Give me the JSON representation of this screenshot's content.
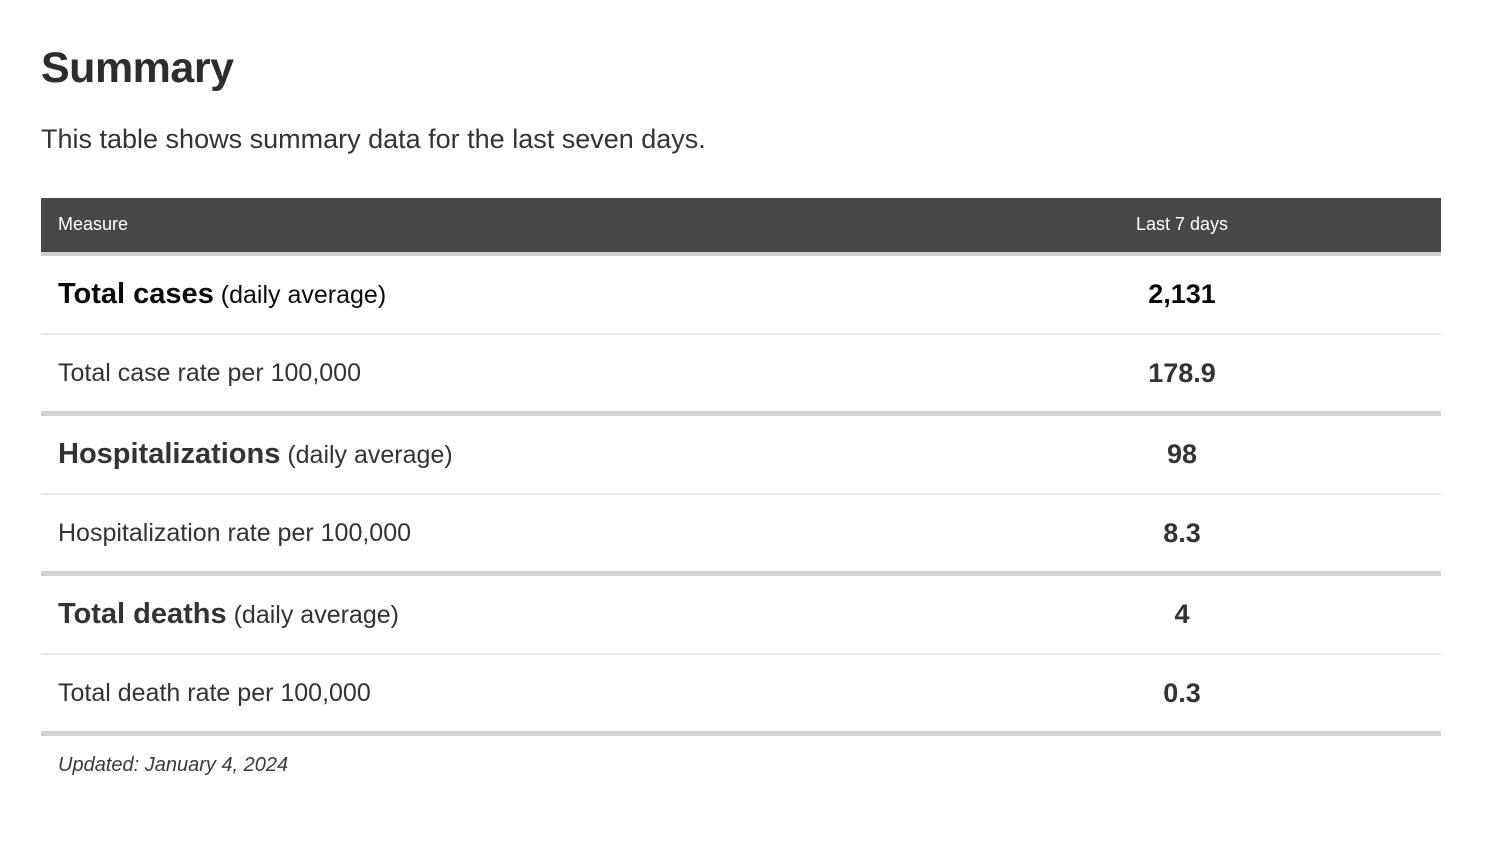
{
  "page": {
    "title": "Summary",
    "subtitle": "This table shows summary data for the last seven days.",
    "updated_note": "Updated: January 4, 2024"
  },
  "table": {
    "columns": {
      "measure": "Measure",
      "value": "Last 7 days"
    },
    "rows": [
      {
        "measure": "Total cases",
        "qualifier": "(daily average)",
        "value": "2,131"
      },
      {
        "measure": "Total case rate per 100,000",
        "qualifier": "",
        "value": "178.9"
      },
      {
        "measure": "Hospitalizations",
        "qualifier": "(daily average)",
        "value": "98"
      },
      {
        "measure": "Hospitalization rate per 100,000",
        "qualifier": "",
        "value": "8.3"
      },
      {
        "measure": "Total deaths",
        "qualifier": "(daily average)",
        "value": "4"
      },
      {
        "measure": "Total death rate per 100,000",
        "qualifier": "",
        "value": "0.3"
      }
    ]
  },
  "colors": {
    "header_background": "#484848",
    "header_text": "#ffffff",
    "row_text": "#333333",
    "emphasized_row_text": "#0a0a0a",
    "thin_divider": "#eaeaea",
    "thick_divider": "#d2d2d2",
    "header_divider": "#cfcfcf"
  },
  "chart_data": {
    "type": "table",
    "title": "Summary",
    "subtitle": "This table shows summary data for the last seven days.",
    "columns": [
      "Measure",
      "Last 7 days"
    ],
    "rows": [
      [
        "Total cases (daily average)",
        "2,131"
      ],
      [
        "Total case rate per 100,000",
        "178.9"
      ],
      [
        "Hospitalizations (daily average)",
        "98"
      ],
      [
        "Hospitalization rate per 100,000",
        "8.3"
      ],
      [
        "Total deaths (daily average)",
        "4"
      ],
      [
        "Total death rate per 100,000",
        "0.3"
      ]
    ],
    "numeric_values": [
      2131,
      178.9,
      98,
      8.3,
      4,
      0.3
    ],
    "footnote": "Updated: January 4, 2024"
  }
}
